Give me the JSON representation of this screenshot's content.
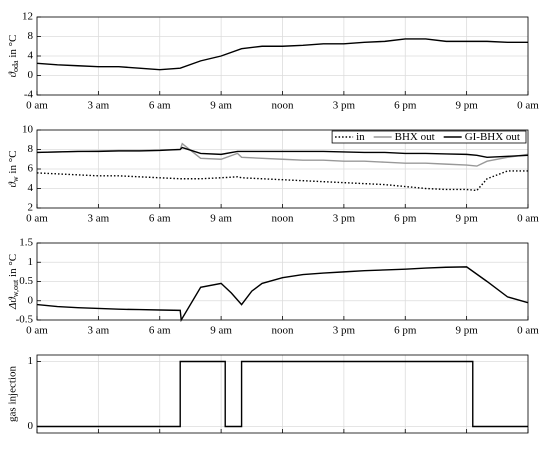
{
  "chart_data": [
    {
      "type": "line",
      "ylabel": {
        "symbol": "ϑ",
        "subscript": "oda",
        "rest": " in °C"
      },
      "color": "#000000",
      "grid": true,
      "xlim": [
        0,
        24
      ],
      "xticks": [
        {
          "value": 0,
          "label": "0 am"
        },
        {
          "value": 3,
          "label": "3 am"
        },
        {
          "value": 6,
          "label": "6 am"
        },
        {
          "value": 9,
          "label": "9 am"
        },
        {
          "value": 12,
          "label": "noon"
        },
        {
          "value": 15,
          "label": "3 pm"
        },
        {
          "value": 18,
          "label": "6 pm"
        },
        {
          "value": 21,
          "label": "9 pm"
        },
        {
          "value": 24,
          "label": "0 am"
        }
      ],
      "ylim": [
        -4,
        12
      ],
      "yticks": [
        -4,
        0,
        4,
        8,
        12
      ],
      "x": [
        0,
        1,
        2,
        3,
        4,
        5,
        6,
        7,
        8,
        9,
        10,
        11,
        12,
        13,
        14,
        15,
        16,
        17,
        18,
        19,
        20,
        21,
        22,
        23,
        24
      ],
      "values": [
        2.5,
        2.2,
        2,
        1.8,
        1.8,
        1.5,
        1.2,
        1.5,
        3,
        4,
        5.5,
        6,
        6,
        6.2,
        6.5,
        6.5,
        6.8,
        7,
        7.5,
        7.5,
        7,
        7,
        7,
        6.8,
        6.8
      ]
    },
    {
      "type": "line",
      "ylabel": {
        "symbol": "ϑ",
        "subscript": "w",
        "rest": " in °C"
      },
      "grid": true,
      "legend": "upper right",
      "xlim": [
        0,
        24
      ],
      "xticks": [
        {
          "value": 0,
          "label": "0 am"
        },
        {
          "value": 3,
          "label": "3 am"
        },
        {
          "value": 6,
          "label": "6 am"
        },
        {
          "value": 9,
          "label": "9 am"
        },
        {
          "value": 12,
          "label": "noon"
        },
        {
          "value": 15,
          "label": "3 pm"
        },
        {
          "value": 18,
          "label": "6 pm"
        },
        {
          "value": 21,
          "label": "9 pm"
        },
        {
          "value": 24,
          "label": "0 am"
        }
      ],
      "ylim": [
        2,
        10
      ],
      "yticks": [
        2,
        4,
        6,
        8,
        10
      ],
      "x": [
        0,
        1,
        2,
        3,
        4,
        5,
        6,
        7,
        7.1,
        8,
        9,
        9.8,
        10,
        11,
        12,
        13,
        14,
        15,
        16,
        17,
        18,
        19,
        20,
        21,
        21.5,
        22,
        23,
        24
      ],
      "series": [
        {
          "name": "in",
          "color": "#000000",
          "dash": "dotted",
          "values": [
            5.6,
            5.5,
            5.4,
            5.3,
            5.3,
            5.2,
            5.1,
            5.0,
            5.0,
            5.0,
            5.1,
            5.2,
            5.1,
            5.0,
            4.9,
            4.8,
            4.7,
            4.6,
            4.5,
            4.4,
            4.2,
            4.0,
            3.9,
            3.9,
            3.8,
            5.0,
            5.8,
            5.8
          ]
        },
        {
          "name": "BHX out",
          "color": "#999999",
          "dash": "solid",
          "values": [
            7.7,
            7.75,
            7.8,
            7.85,
            7.9,
            7.9,
            7.95,
            8.0,
            8.6,
            7.1,
            7.0,
            7.6,
            7.2,
            7.1,
            7.0,
            6.9,
            6.9,
            6.8,
            6.8,
            6.7,
            6.6,
            6.6,
            6.5,
            6.4,
            6.3,
            6.8,
            7.2,
            7.5
          ]
        },
        {
          "name": "GI-BHX out",
          "color": "#000000",
          "dash": "solid",
          "values": [
            7.7,
            7.75,
            7.8,
            7.8,
            7.85,
            7.85,
            7.9,
            8.0,
            8.2,
            7.6,
            7.5,
            7.8,
            7.8,
            7.8,
            7.8,
            7.8,
            7.8,
            7.75,
            7.7,
            7.7,
            7.6,
            7.6,
            7.55,
            7.5,
            7.4,
            7.2,
            7.3,
            7.4
          ]
        }
      ]
    },
    {
      "type": "line",
      "ylabel": {
        "symbol": "Δϑ",
        "subscript": "w,out",
        "rest": " in °C"
      },
      "color": "#000000",
      "grid": true,
      "xlim": [
        0,
        24
      ],
      "xticks": [
        {
          "value": 0,
          "label": "0 am"
        },
        {
          "value": 3,
          "label": "3 am"
        },
        {
          "value": 6,
          "label": "6 am"
        },
        {
          "value": 9,
          "label": "9 am"
        },
        {
          "value": 12,
          "label": "noon"
        },
        {
          "value": 15,
          "label": "3 pm"
        },
        {
          "value": 18,
          "label": "6 pm"
        },
        {
          "value": 21,
          "label": "9 pm"
        },
        {
          "value": 24,
          "label": "0 am"
        }
      ],
      "ylim": [
        -0.5,
        1.5
      ],
      "yticks": [
        -0.5,
        0,
        0.5,
        1,
        1.5
      ],
      "x": [
        0,
        1,
        2,
        3,
        4,
        5,
        6,
        7,
        7.05,
        8,
        9,
        9.5,
        10,
        10.5,
        11,
        12,
        13,
        14,
        15,
        16,
        17,
        18,
        19,
        20,
        21,
        22,
        23,
        24
      ],
      "values": [
        -0.1,
        -0.15,
        -0.18,
        -0.2,
        -0.22,
        -0.23,
        -0.24,
        -0.25,
        -0.5,
        0.35,
        0.45,
        0.2,
        -0.1,
        0.25,
        0.45,
        0.6,
        0.68,
        0.72,
        0.75,
        0.78,
        0.8,
        0.82,
        0.85,
        0.87,
        0.88,
        0.5,
        0.1,
        -0.05
      ]
    },
    {
      "type": "line",
      "ylabel": "gas injection",
      "color": "#000000",
      "grid": true,
      "show_xtick_labels": false,
      "xlim": [
        0,
        24
      ],
      "xticks": [
        0,
        3,
        6,
        9,
        12,
        15,
        18,
        21,
        24
      ],
      "ylim": [
        -0.1,
        1.1
      ],
      "yticks": [
        0,
        1
      ],
      "x": [
        0,
        7,
        7,
        9.2,
        9.2,
        10,
        10,
        21.3,
        21.3,
        24
      ],
      "values": [
        0,
        0,
        1,
        1,
        0,
        0,
        1,
        1,
        0,
        0
      ]
    }
  ]
}
